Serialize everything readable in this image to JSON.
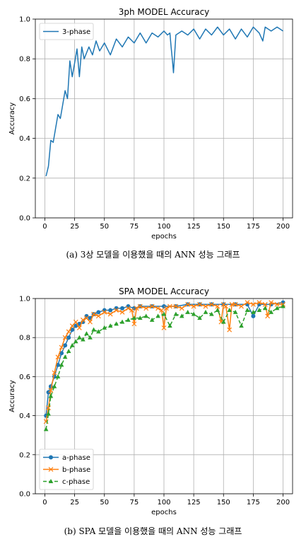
{
  "chart_data": [
    {
      "type": "line",
      "title": "3ph MODEL Accuracy",
      "xlabel": "epochs",
      "ylabel": "Accuracy",
      "xlim": [
        -8,
        208
      ],
      "ylim": [
        0.0,
        1.0
      ],
      "xticks": [
        0,
        25,
        50,
        75,
        100,
        125,
        150,
        175,
        200
      ],
      "yticks": [
        0.0,
        0.2,
        0.4,
        0.6,
        0.8,
        1.0
      ],
      "grid": true,
      "legend": "upper-left",
      "caption": "(a) 3상 모델을 이용했을 때의 ANN 성능 그래프",
      "series": [
        {
          "name": "3-phase",
          "color": "#1f77b4",
          "marker": "none",
          "linestyle": "solid",
          "x": [
            1,
            3,
            5,
            7,
            9,
            11,
            13,
            15,
            17,
            19,
            21,
            23,
            25,
            27,
            29,
            31,
            33,
            35,
            37,
            40,
            43,
            46,
            50,
            55,
            60,
            65,
            70,
            75,
            80,
            85,
            90,
            95,
            100,
            103,
            105,
            106,
            107,
            108,
            110,
            115,
            120,
            125,
            130,
            135,
            140,
            145,
            150,
            155,
            160,
            165,
            170,
            175,
            180,
            183,
            185,
            190,
            195,
            200
          ],
          "y": [
            0.21,
            0.26,
            0.39,
            0.38,
            0.45,
            0.52,
            0.5,
            0.57,
            0.64,
            0.6,
            0.79,
            0.71,
            0.78,
            0.85,
            0.71,
            0.86,
            0.8,
            0.83,
            0.86,
            0.82,
            0.89,
            0.84,
            0.88,
            0.82,
            0.9,
            0.86,
            0.91,
            0.88,
            0.93,
            0.88,
            0.93,
            0.91,
            0.94,
            0.92,
            0.93,
            0.86,
            0.8,
            0.73,
            0.92,
            0.94,
            0.92,
            0.95,
            0.9,
            0.95,
            0.92,
            0.96,
            0.92,
            0.95,
            0.9,
            0.95,
            0.91,
            0.96,
            0.93,
            0.89,
            0.96,
            0.94,
            0.96,
            0.94
          ]
        }
      ]
    },
    {
      "type": "line",
      "title": "SPA MODEL Accuracy",
      "xlabel": "epochs",
      "ylabel": "Accuracy",
      "xlim": [
        -8,
        208
      ],
      "ylim": [
        0.0,
        1.0
      ],
      "xticks": [
        0,
        25,
        50,
        75,
        100,
        125,
        150,
        175,
        200
      ],
      "yticks": [
        0.0,
        0.2,
        0.4,
        0.6,
        0.8,
        1.0
      ],
      "grid": true,
      "legend": "lower-left",
      "caption": "(b) SPA 모델을 이용했을 때의 ANN 성능 그래프",
      "series": [
        {
          "name": "a-phase",
          "color": "#1f77b4",
          "marker": "circle",
          "linestyle": "solid",
          "x": [
            1,
            3,
            5,
            8,
            11,
            14,
            17,
            20,
            23,
            26,
            29,
            32,
            35,
            38,
            41,
            45,
            50,
            55,
            60,
            65,
            70,
            75,
            80,
            90,
            100,
            110,
            120,
            130,
            140,
            150,
            160,
            170,
            175,
            180,
            190,
            200
          ],
          "y": [
            0.4,
            0.52,
            0.55,
            0.6,
            0.66,
            0.72,
            0.76,
            0.8,
            0.84,
            0.86,
            0.87,
            0.88,
            0.91,
            0.9,
            0.92,
            0.93,
            0.94,
            0.94,
            0.95,
            0.95,
            0.96,
            0.95,
            0.96,
            0.96,
            0.96,
            0.96,
            0.97,
            0.97,
            0.97,
            0.97,
            0.97,
            0.97,
            0.91,
            0.97,
            0.97,
            0.98
          ]
        },
        {
          "name": "b-phase",
          "color": "#ff7f0e",
          "marker": "x",
          "linestyle": "solid",
          "x": [
            1,
            3,
            5,
            8,
            11,
            14,
            17,
            20,
            23,
            26,
            29,
            32,
            35,
            38,
            41,
            45,
            50,
            55,
            60,
            65,
            70,
            73,
            75,
            77,
            80,
            85,
            90,
            95,
            98,
            100,
            102,
            105,
            110,
            115,
            120,
            125,
            130,
            135,
            140,
            145,
            148,
            150,
            152,
            155,
            157,
            160,
            165,
            170,
            175,
            180,
            185,
            187,
            190,
            195,
            200
          ],
          "y": [
            0.37,
            0.44,
            0.53,
            0.62,
            0.7,
            0.75,
            0.8,
            0.83,
            0.86,
            0.88,
            0.85,
            0.89,
            0.9,
            0.88,
            0.92,
            0.91,
            0.93,
            0.92,
            0.94,
            0.93,
            0.95,
            0.94,
            0.87,
            0.95,
            0.96,
            0.95,
            0.96,
            0.95,
            0.94,
            0.85,
            0.95,
            0.96,
            0.96,
            0.95,
            0.97,
            0.96,
            0.97,
            0.96,
            0.97,
            0.96,
            0.88,
            0.97,
            0.96,
            0.84,
            0.97,
            0.97,
            0.96,
            0.98,
            0.97,
            0.98,
            0.97,
            0.91,
            0.98,
            0.97,
            0.97
          ]
        },
        {
          "name": "c-phase",
          "color": "#2ca02c",
          "marker": "triangle",
          "linestyle": "dashed",
          "x": [
            1,
            3,
            5,
            8,
            11,
            14,
            17,
            20,
            23,
            26,
            29,
            32,
            35,
            38,
            41,
            45,
            50,
            55,
            60,
            65,
            70,
            75,
            80,
            85,
            90,
            95,
            100,
            105,
            110,
            115,
            120,
            125,
            130,
            135,
            140,
            145,
            150,
            155,
            160,
            165,
            170,
            175,
            180,
            185,
            190,
            195,
            200
          ],
          "y": [
            0.33,
            0.41,
            0.5,
            0.55,
            0.6,
            0.66,
            0.7,
            0.73,
            0.76,
            0.78,
            0.8,
            0.79,
            0.82,
            0.8,
            0.84,
            0.83,
            0.85,
            0.86,
            0.87,
            0.88,
            0.89,
            0.9,
            0.9,
            0.91,
            0.89,
            0.91,
            0.92,
            0.86,
            0.92,
            0.91,
            0.93,
            0.92,
            0.9,
            0.93,
            0.92,
            0.94,
            0.88,
            0.94,
            0.93,
            0.86,
            0.94,
            0.93,
            0.94,
            0.95,
            0.93,
            0.95,
            0.96
          ]
        }
      ]
    }
  ]
}
